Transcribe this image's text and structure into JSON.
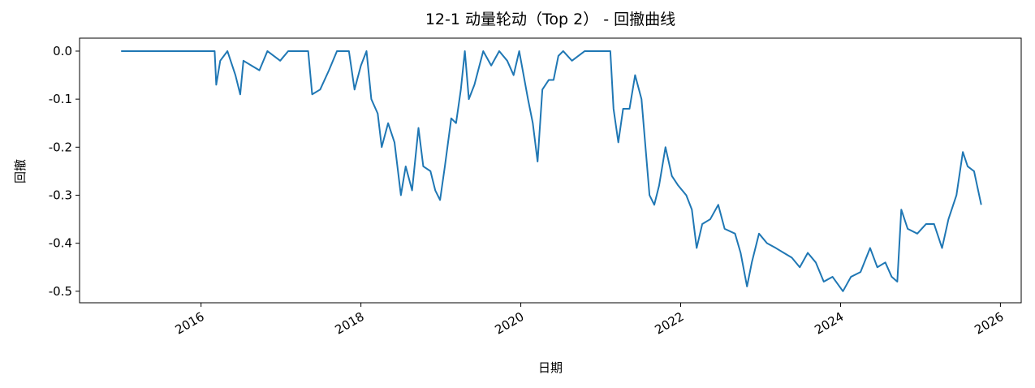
{
  "chart_data": {
    "type": "line",
    "title": "12-1 动量轮动（Top 2） - 回撤曲线",
    "x_label": "日期",
    "y_label": "回撤",
    "x": [
      2015.0,
      2016.17,
      2016.19,
      2016.24,
      2016.33,
      2016.43,
      2016.49,
      2016.53,
      2016.63,
      2016.73,
      2016.83,
      2016.99,
      2017.09,
      2017.34,
      2017.39,
      2017.49,
      2017.6,
      2017.7,
      2017.85,
      2017.92,
      2018.0,
      2018.07,
      2018.13,
      2018.21,
      2018.26,
      2018.34,
      2018.42,
      2018.5,
      2018.56,
      2018.64,
      2018.72,
      2018.78,
      2018.87,
      2018.93,
      2018.99,
      2019.05,
      2019.13,
      2019.19,
      2019.25,
      2019.3,
      2019.35,
      2019.42,
      2019.53,
      2019.63,
      2019.73,
      2019.83,
      2019.91,
      2019.98,
      2020.09,
      2020.15,
      2020.21,
      2020.27,
      2020.35,
      2020.41,
      2020.47,
      2020.53,
      2020.64,
      2020.8,
      2020.95,
      2021.12,
      2021.16,
      2021.22,
      2021.28,
      2021.36,
      2021.43,
      2021.51,
      2021.56,
      2021.61,
      2021.67,
      2021.73,
      2021.81,
      2021.89,
      2021.97,
      2022.07,
      2022.14,
      2022.2,
      2022.27,
      2022.37,
      2022.47,
      2022.55,
      2022.68,
      2022.75,
      2022.83,
      2022.89,
      2022.98,
      2023.08,
      2023.19,
      2023.29,
      2023.39,
      2023.49,
      2023.59,
      2023.69,
      2023.79,
      2023.9,
      2024.03,
      2024.13,
      2024.25,
      2024.37,
      2024.46,
      2024.56,
      2024.64,
      2024.71,
      2024.76,
      2024.84,
      2024.96,
      2025.07,
      2025.17,
      2025.27,
      2025.35,
      2025.45,
      2025.53,
      2025.59,
      2025.67,
      2025.76
    ],
    "series": [
      {
        "name": "回撤",
        "color": "#1f77b4",
        "values": [
          0,
          0,
          -0.07,
          -0.02,
          0,
          -0.05,
          -0.09,
          -0.02,
          -0.03,
          -0.04,
          0,
          -0.02,
          0,
          0,
          -0.09,
          -0.08,
          -0.04,
          0,
          0,
          -0.08,
          -0.03,
          0,
          -0.1,
          -0.13,
          -0.2,
          -0.15,
          -0.19,
          -0.3,
          -0.24,
          -0.29,
          -0.16,
          -0.24,
          -0.25,
          -0.29,
          -0.31,
          -0.24,
          -0.14,
          -0.15,
          -0.08,
          0,
          -0.1,
          -0.07,
          0,
          -0.03,
          0,
          -0.02,
          -0.05,
          0,
          -0.1,
          -0.15,
          -0.23,
          -0.08,
          -0.06,
          -0.06,
          -0.01,
          0,
          -0.02,
          0,
          0,
          0,
          -0.12,
          -0.19,
          -0.12,
          -0.12,
          -0.05,
          -0.1,
          -0.2,
          -0.3,
          -0.32,
          -0.28,
          -0.2,
          -0.26,
          -0.28,
          -0.3,
          -0.33,
          -0.41,
          -0.36,
          -0.35,
          -0.32,
          -0.37,
          -0.38,
          -0.42,
          -0.49,
          -0.44,
          -0.38,
          -0.4,
          -0.41,
          -0.42,
          -0.43,
          -0.45,
          -0.42,
          -0.44,
          -0.48,
          -0.47,
          -0.5,
          -0.47,
          -0.46,
          -0.41,
          -0.45,
          -0.44,
          -0.47,
          -0.48,
          -0.33,
          -0.37,
          -0.38,
          -0.36,
          -0.36,
          -0.41,
          -0.35,
          -0.3,
          -0.21,
          -0.24,
          -0.25,
          -0.32
        ]
      }
    ],
    "xlim": [
      2014.48,
      2026.26
    ],
    "xticks": [
      2016,
      2018,
      2020,
      2022,
      2024,
      2026
    ],
    "ylim": [
      -0.524,
      0.027
    ],
    "yticks": [
      {
        "value": 0,
        "label": "0.0"
      },
      -0.1,
      -0.2,
      -0.3,
      -0.4,
      -0.5
    ],
    "grid": false
  }
}
